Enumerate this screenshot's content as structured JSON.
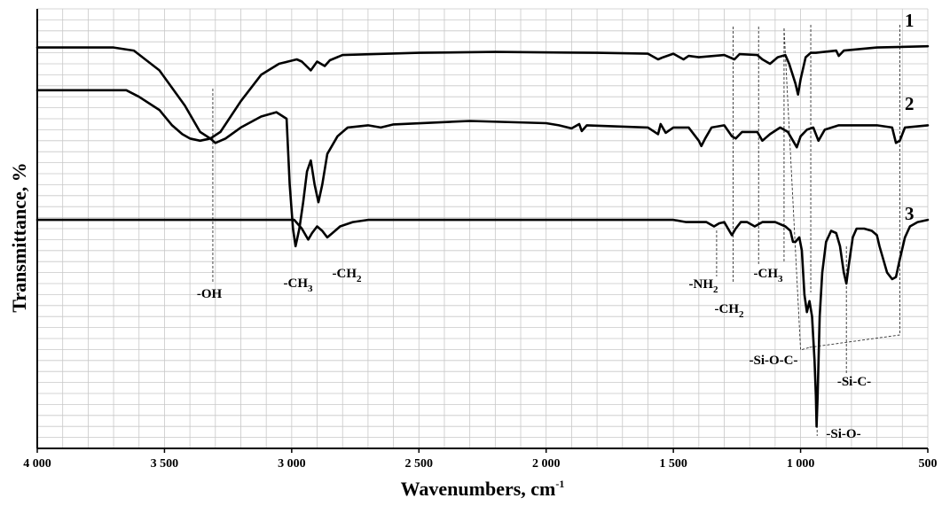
{
  "chart_data": {
    "type": "line",
    "xlabel": "Wavenumbers, cm",
    "xlabel_sup": "-1",
    "ylabel": "Transmittance, %",
    "xlim": [
      4000,
      500
    ],
    "x_reversed": true,
    "grid": true,
    "x_ticks": [
      4000,
      3500,
      3000,
      2500,
      2000,
      1500,
      1000,
      500
    ],
    "x_tick_labels": [
      "4 000",
      "3 500",
      "3 000",
      "2 500",
      "2 000",
      "1 500",
      "1 000",
      "500"
    ],
    "series": [
      {
        "name": "1",
        "baseline": 0.912,
        "points": [
          [
            4000,
            0.912
          ],
          [
            3700,
            0.912
          ],
          [
            3620,
            0.905
          ],
          [
            3520,
            0.86
          ],
          [
            3420,
            0.78
          ],
          [
            3360,
            0.72
          ],
          [
            3320,
            0.705
          ],
          [
            3280,
            0.72
          ],
          [
            3200,
            0.79
          ],
          [
            3120,
            0.85
          ],
          [
            3050,
            0.875
          ],
          [
            2980,
            0.885
          ],
          [
            2960,
            0.88
          ],
          [
            2925,
            0.86
          ],
          [
            2900,
            0.88
          ],
          [
            2870,
            0.87
          ],
          [
            2850,
            0.883
          ],
          [
            2800,
            0.895
          ],
          [
            2500,
            0.9
          ],
          [
            2200,
            0.902
          ],
          [
            1800,
            0.9
          ],
          [
            1600,
            0.898
          ],
          [
            1560,
            0.885
          ],
          [
            1540,
            0.89
          ],
          [
            1500,
            0.898
          ],
          [
            1460,
            0.885
          ],
          [
            1440,
            0.893
          ],
          [
            1400,
            0.89
          ],
          [
            1300,
            0.895
          ],
          [
            1260,
            0.885
          ],
          [
            1240,
            0.897
          ],
          [
            1170,
            0.895
          ],
          [
            1150,
            0.885
          ],
          [
            1120,
            0.875
          ],
          [
            1090,
            0.89
          ],
          [
            1060,
            0.895
          ],
          [
            1045,
            0.875
          ],
          [
            1020,
            0.83
          ],
          [
            1010,
            0.805
          ],
          [
            1000,
            0.84
          ],
          [
            980,
            0.89
          ],
          [
            960,
            0.9
          ],
          [
            940,
            0.9
          ],
          [
            860,
            0.905
          ],
          [
            850,
            0.893
          ],
          [
            830,
            0.905
          ],
          [
            700,
            0.912
          ],
          [
            500,
            0.915
          ]
        ]
      },
      {
        "name": "2",
        "baseline": 0.815,
        "points": [
          [
            4000,
            0.815
          ],
          [
            3650,
            0.815
          ],
          [
            3600,
            0.8
          ],
          [
            3520,
            0.77
          ],
          [
            3470,
            0.735
          ],
          [
            3430,
            0.715
          ],
          [
            3400,
            0.705
          ],
          [
            3360,
            0.7
          ],
          [
            3320,
            0.705
          ],
          [
            3300,
            0.695
          ],
          [
            3260,
            0.705
          ],
          [
            3200,
            0.73
          ],
          [
            3120,
            0.755
          ],
          [
            3060,
            0.765
          ],
          [
            3020,
            0.75
          ],
          [
            3008,
            0.6
          ],
          [
            2995,
            0.5
          ],
          [
            2985,
            0.46
          ],
          [
            2970,
            0.5
          ],
          [
            2955,
            0.56
          ],
          [
            2940,
            0.63
          ],
          [
            2925,
            0.655
          ],
          [
            2910,
            0.6
          ],
          [
            2895,
            0.56
          ],
          [
            2880,
            0.6
          ],
          [
            2860,
            0.67
          ],
          [
            2820,
            0.71
          ],
          [
            2780,
            0.73
          ],
          [
            2700,
            0.735
          ],
          [
            2650,
            0.73
          ],
          [
            2600,
            0.737
          ],
          [
            2300,
            0.745
          ],
          [
            2000,
            0.74
          ],
          [
            1950,
            0.735
          ],
          [
            1900,
            0.728
          ],
          [
            1870,
            0.738
          ],
          [
            1860,
            0.722
          ],
          [
            1840,
            0.735
          ],
          [
            1600,
            0.73
          ],
          [
            1560,
            0.715
          ],
          [
            1550,
            0.738
          ],
          [
            1530,
            0.718
          ],
          [
            1500,
            0.73
          ],
          [
            1440,
            0.73
          ],
          [
            1400,
            0.7
          ],
          [
            1390,
            0.688
          ],
          [
            1375,
            0.705
          ],
          [
            1350,
            0.73
          ],
          [
            1300,
            0.735
          ],
          [
            1270,
            0.71
          ],
          [
            1255,
            0.705
          ],
          [
            1230,
            0.72
          ],
          [
            1170,
            0.72
          ],
          [
            1150,
            0.7
          ],
          [
            1120,
            0.715
          ],
          [
            1080,
            0.73
          ],
          [
            1050,
            0.72
          ],
          [
            1030,
            0.7
          ],
          [
            1015,
            0.685
          ],
          [
            1000,
            0.71
          ],
          [
            975,
            0.725
          ],
          [
            950,
            0.73
          ],
          [
            930,
            0.7
          ],
          [
            905,
            0.725
          ],
          [
            850,
            0.735
          ],
          [
            700,
            0.735
          ],
          [
            640,
            0.73
          ],
          [
            625,
            0.695
          ],
          [
            610,
            0.7
          ],
          [
            590,
            0.73
          ],
          [
            500,
            0.735
          ]
        ]
      },
      {
        "name": "3",
        "baseline": 0.52,
        "points": [
          [
            4000,
            0.52
          ],
          [
            3100,
            0.52
          ],
          [
            2990,
            0.52
          ],
          [
            2960,
            0.5
          ],
          [
            2935,
            0.475
          ],
          [
            2920,
            0.49
          ],
          [
            2900,
            0.505
          ],
          [
            2880,
            0.495
          ],
          [
            2860,
            0.48
          ],
          [
            2840,
            0.49
          ],
          [
            2810,
            0.505
          ],
          [
            2760,
            0.515
          ],
          [
            2700,
            0.52
          ],
          [
            1500,
            0.52
          ],
          [
            1450,
            0.515
          ],
          [
            1370,
            0.515
          ],
          [
            1340,
            0.505
          ],
          [
            1320,
            0.512
          ],
          [
            1300,
            0.515
          ],
          [
            1285,
            0.5
          ],
          [
            1270,
            0.485
          ],
          [
            1255,
            0.5
          ],
          [
            1235,
            0.515
          ],
          [
            1210,
            0.515
          ],
          [
            1180,
            0.505
          ],
          [
            1150,
            0.515
          ],
          [
            1100,
            0.515
          ],
          [
            1060,
            0.505
          ],
          [
            1040,
            0.495
          ],
          [
            1030,
            0.47
          ],
          [
            1020,
            0.47
          ],
          [
            1005,
            0.48
          ],
          [
            995,
            0.45
          ],
          [
            985,
            0.35
          ],
          [
            975,
            0.31
          ],
          [
            965,
            0.335
          ],
          [
            955,
            0.3
          ],
          [
            945,
            0.2
          ],
          [
            940,
            0.12
          ],
          [
            937,
            0.05
          ],
          [
            933,
            0.12
          ],
          [
            925,
            0.3
          ],
          [
            915,
            0.4
          ],
          [
            900,
            0.47
          ],
          [
            880,
            0.495
          ],
          [
            860,
            0.49
          ],
          [
            845,
            0.46
          ],
          [
            830,
            0.4
          ],
          [
            820,
            0.375
          ],
          [
            810,
            0.42
          ],
          [
            795,
            0.48
          ],
          [
            780,
            0.5
          ],
          [
            750,
            0.5
          ],
          [
            720,
            0.495
          ],
          [
            700,
            0.485
          ],
          [
            690,
            0.46
          ],
          [
            675,
            0.43
          ],
          [
            660,
            0.4
          ],
          [
            640,
            0.385
          ],
          [
            625,
            0.39
          ],
          [
            610,
            0.43
          ],
          [
            590,
            0.48
          ],
          [
            570,
            0.505
          ],
          [
            540,
            0.515
          ],
          [
            500,
            0.52
          ]
        ]
      }
    ],
    "annotations": [
      {
        "label": "-OH",
        "x": 3310
      },
      {
        "label": "-CH",
        "sub": "3",
        "x": 2950
      },
      {
        "label": "-CH",
        "sub": "2",
        "x": 2820
      },
      {
        "label": "-NH",
        "sub": "2",
        "x": 1330
      },
      {
        "label": "-CH",
        "sub": "2",
        "x": 1265
      },
      {
        "label": "-CH",
        "sub": "3",
        "x": 1165
      },
      {
        "label": "-Si-O-C-",
        "x": 990
      },
      {
        "label": "-Si-C-",
        "x": 820
      },
      {
        "label": "-Si-O-",
        "x": 935
      }
    ]
  }
}
